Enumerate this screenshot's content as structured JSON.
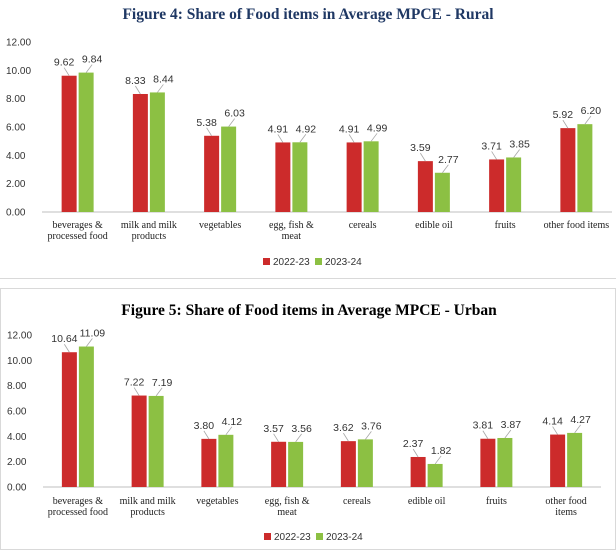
{
  "chart_data": [
    {
      "type": "bar",
      "title": "Figure  4: Share of Food items in Average MPCE - Rural",
      "categories": [
        [
          "beverages &",
          "processed food"
        ],
        [
          "milk and milk",
          "products"
        ],
        [
          "vegetables"
        ],
        [
          "egg, fish &",
          "meat"
        ],
        [
          "cereals"
        ],
        [
          "edible oil"
        ],
        [
          "fruits"
        ],
        [
          "other food items"
        ]
      ],
      "series": [
        {
          "name": "2022-23",
          "color": "#cc2b2b",
          "values": [
            9.62,
            8.33,
            5.38,
            4.91,
            4.91,
            3.59,
            3.71,
            5.92
          ],
          "labels": [
            "9.62",
            "8.33",
            "5.38",
            "4.91",
            "4.91",
            "3.59",
            "3.71",
            "5.92"
          ]
        },
        {
          "name": "2023-24",
          "color": "#8cc043",
          "values": [
            9.84,
            8.44,
            6.03,
            4.92,
            4.99,
            2.77,
            3.85,
            6.2
          ],
          "labels": [
            "9.84",
            "8.44",
            "6.03",
            "4.92",
            "4.99",
            "2.77",
            "3.85",
            "6.20"
          ]
        }
      ],
      "yticks": [
        "0.00",
        "2.00",
        "4.00",
        "6.00",
        "8.00",
        "10.00",
        "12.00"
      ],
      "ylim": [
        0,
        12
      ],
      "xlabel": "",
      "ylabel": "",
      "legend": "bottom-center"
    },
    {
      "type": "bar",
      "title": "Figure  5: Share of Food items in Average MPCE - Urban",
      "categories": [
        [
          "beverages &",
          "processed food"
        ],
        [
          "milk and milk",
          "products"
        ],
        [
          "vegetables"
        ],
        [
          "egg, fish &",
          "meat"
        ],
        [
          "cereals"
        ],
        [
          "edible oil"
        ],
        [
          "fruits"
        ],
        [
          "other food",
          "items"
        ]
      ],
      "series": [
        {
          "name": "2022-23",
          "color": "#cc2b2b",
          "values": [
            10.64,
            7.22,
            3.8,
            3.57,
            3.62,
            2.37,
            3.81,
            4.14
          ],
          "labels": [
            "10.64",
            "7.22",
            "3.80",
            "3.57",
            "3.62",
            "2.37",
            "3.81",
            "4.14"
          ]
        },
        {
          "name": "2023-24",
          "color": "#8cc043",
          "values": [
            11.09,
            7.19,
            4.12,
            3.56,
            3.76,
            1.82,
            3.87,
            4.27
          ],
          "labels": [
            "11.09",
            "7.19",
            "4.12",
            "3.56",
            "3.76",
            "1.82",
            "3.87",
            "4.27"
          ]
        }
      ],
      "yticks": [
        "0.00",
        "2.00",
        "4.00",
        "6.00",
        "8.00",
        "10.00",
        "12.00"
      ],
      "ylim": [
        0,
        12
      ],
      "xlabel": "",
      "ylabel": "",
      "legend": "bottom-center"
    }
  ]
}
